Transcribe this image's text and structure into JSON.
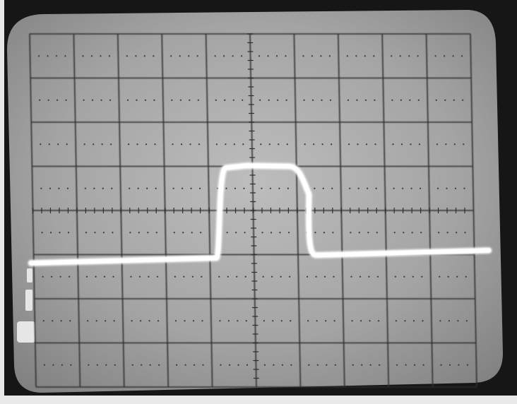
{
  "scene": {
    "subject": "oscilloscope-screen",
    "trace": {
      "shape": "rectangular-pulse",
      "baseline_level_div": -1.0,
      "pulse_level_div": 1.0,
      "rise_start_div": -0.7,
      "rise_end_div": -0.55,
      "fall_start_div": 1.05,
      "fall_end_div": 1.4
    },
    "graticule": {
      "horizontal_divisions": 10,
      "vertical_divisions": 8,
      "minor_ticks_per_division": 5
    },
    "colors": {
      "photo_border": "#1a1a1a",
      "screen_light": "#b8b8b8",
      "screen_dark": "#7c7c7c",
      "grid_line": "#2e2e2e",
      "trace": "#fafafa"
    }
  }
}
